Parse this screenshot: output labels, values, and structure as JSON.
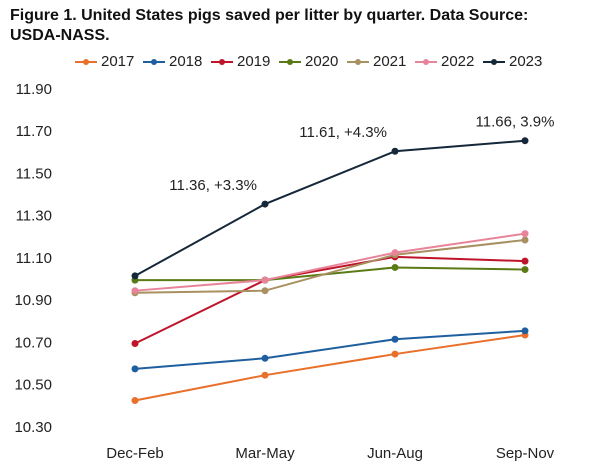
{
  "chart_data": {
    "type": "line",
    "title": "Figure 1. United States pigs saved per litter by quarter. Data Source: USDA-NASS.",
    "categories": [
      "Dec-Feb",
      "Mar-May",
      "Jun-Aug",
      "Sep-Nov"
    ],
    "series": [
      {
        "name": "2017",
        "color": "#e8702a",
        "values": [
          10.43,
          10.55,
          10.65,
          10.74
        ]
      },
      {
        "name": "2018",
        "color": "#1f5fa0",
        "values": [
          10.58,
          10.63,
          10.72,
          10.76
        ]
      },
      {
        "name": "2019",
        "color": "#c0142a",
        "values": [
          10.7,
          11.0,
          11.11,
          11.09
        ]
      },
      {
        "name": "2020",
        "color": "#5a7a16",
        "values": [
          11.0,
          11.0,
          11.06,
          11.05
        ]
      },
      {
        "name": "2021",
        "color": "#a89060",
        "values": [
          10.94,
          10.95,
          11.12,
          11.19
        ]
      },
      {
        "name": "2022",
        "color": "#e8849a",
        "values": [
          10.95,
          11.0,
          11.13,
          11.22
        ]
      },
      {
        "name": "2023",
        "color": "#14283a",
        "values": [
          11.02,
          11.36,
          11.61,
          11.66
        ],
        "value_labels": [
          null,
          "11.36, +3.3%",
          "11.61, +4.3%",
          "11.66, 3.9%"
        ]
      }
    ],
    "ylim": [
      10.3,
      11.9
    ],
    "yticks": [
      {
        "value": 10.3,
        "label": "10.30"
      },
      {
        "value": 10.5,
        "label": "10.50"
      },
      {
        "value": 10.7,
        "label": "10.70"
      },
      {
        "value": 10.9,
        "label": "10.90"
      },
      {
        "value": 11.1,
        "label": "11.10"
      },
      {
        "value": 11.3,
        "label": "11.30"
      },
      {
        "value": 11.5,
        "label": "11.50"
      },
      {
        "value": 11.7,
        "label": "11.70"
      },
      {
        "value": 11.9,
        "label": "11.90"
      }
    ],
    "grid": false,
    "legend": "top"
  }
}
